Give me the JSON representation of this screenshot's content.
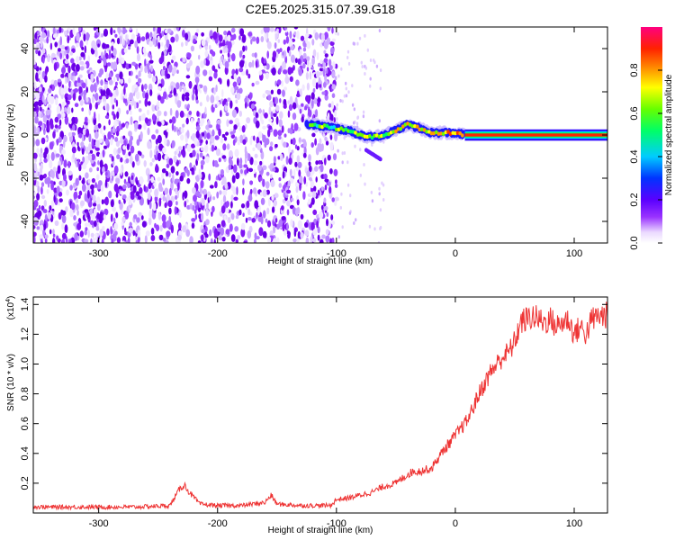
{
  "title": "C2E5.2025.315.07.39.G18",
  "chart_data": [
    {
      "type": "heatmap",
      "name": "spectrogram",
      "xlabel": "Height of straight line (km)",
      "ylabel": "Frequency (Hz)",
      "xlim": [
        -355,
        128
      ],
      "ylim": [
        -50,
        50
      ],
      "xticks": [
        -300,
        -200,
        -100,
        0,
        100
      ],
      "xtick_labels": [
        "-300",
        "-200",
        "-100",
        "0",
        "100"
      ],
      "yticks": [
        -40,
        -20,
        0,
        20,
        40
      ],
      "ytick_labels": [
        "-40",
        "-20",
        "0",
        "20",
        "40"
      ],
      "noise_region_km": [
        -355,
        -100
      ],
      "signal_track": {
        "start_km": -125,
        "stable_from_km": 8,
        "end_km": 128,
        "freq_hz": [
          [
            -125,
            5
          ],
          [
            -110,
            4
          ],
          [
            -100,
            3
          ],
          [
            -90,
            2
          ],
          [
            -80,
            0
          ],
          [
            -70,
            -1
          ],
          [
            -60,
            0
          ],
          [
            -50,
            2
          ],
          [
            -40,
            5
          ],
          [
            -30,
            3
          ],
          [
            -20,
            1
          ],
          [
            -10,
            1
          ],
          [
            0,
            1
          ],
          [
            8,
            0
          ],
          [
            128,
            0
          ]
        ]
      },
      "colorbar": {
        "label": "Normalized spectral amplitude",
        "range": [
          0.0,
          1.0
        ],
        "ticks": [
          0.0,
          0.2,
          0.4,
          0.6,
          0.8
        ],
        "tick_labels": [
          "0.0",
          "0.2",
          "0.4",
          "0.6",
          "0.8"
        ],
        "colors": [
          "#ffffff",
          "#e8d6ff",
          "#8000ff",
          "#0000ff",
          "#00ffff",
          "#00ff00",
          "#ffff00",
          "#ff8000",
          "#ff0000",
          "#ff0080"
        ]
      }
    },
    {
      "type": "line",
      "name": "snr",
      "xlabel": "Height of straight line (km)",
      "ylabel": "SNR (10 * v/v)",
      "scale_label": "(x10",
      "scale_exponent": "4",
      "scale_close": ")",
      "xlim": [
        -355,
        128
      ],
      "ylim": [
        0.0,
        1.45
      ],
      "xticks": [
        -300,
        -200,
        -100,
        0,
        100
      ],
      "xtick_labels": [
        "-300",
        "-200",
        "-100",
        "0",
        "100"
      ],
      "yticks": [
        0.2,
        0.4,
        0.6,
        0.8,
        1.0,
        1.2,
        1.4
      ],
      "ytick_labels": [
        "0.2",
        "0.4",
        "0.6",
        "0.8",
        "1.0",
        "1.2",
        "1.4"
      ],
      "color": "#ee3333",
      "series": [
        {
          "name": "SNR",
          "x": [
            -355,
            -330,
            -300,
            -270,
            -240,
            -232,
            -228,
            -224,
            -215,
            -200,
            -180,
            -160,
            -155,
            -150,
            -130,
            -105,
            -100,
            -90,
            -80,
            -70,
            -60,
            -50,
            -40,
            -35,
            -30,
            -20,
            -10,
            0,
            10,
            20,
            30,
            40,
            45,
            50,
            55,
            60,
            65,
            70,
            75,
            80,
            85,
            90,
            95,
            100,
            105,
            110,
            115,
            120,
            128
          ],
          "y": [
            0.04,
            0.04,
            0.04,
            0.04,
            0.05,
            0.16,
            0.19,
            0.14,
            0.06,
            0.05,
            0.05,
            0.07,
            0.12,
            0.06,
            0.05,
            0.05,
            0.09,
            0.1,
            0.12,
            0.14,
            0.18,
            0.2,
            0.26,
            0.28,
            0.28,
            0.3,
            0.42,
            0.52,
            0.62,
            0.8,
            0.95,
            1.05,
            1.08,
            1.15,
            1.28,
            1.3,
            1.32,
            1.3,
            1.28,
            1.3,
            1.25,
            1.28,
            1.3,
            1.2,
            1.25,
            1.2,
            1.3,
            1.32,
            1.33
          ]
        }
      ]
    }
  ]
}
